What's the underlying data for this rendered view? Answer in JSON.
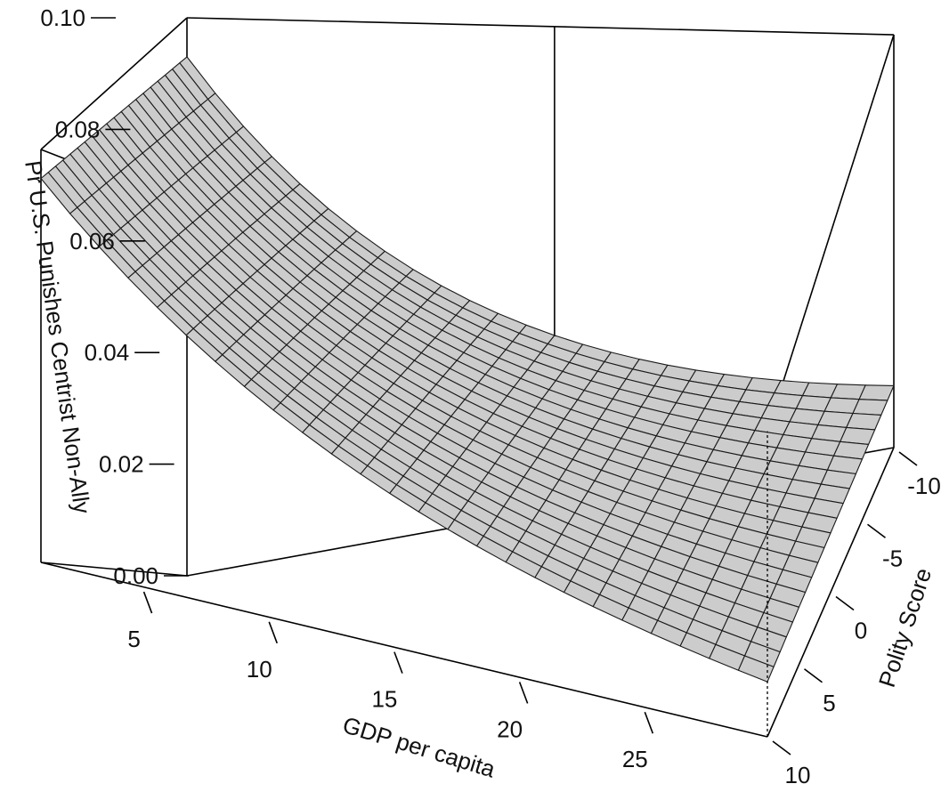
{
  "chart_data": {
    "type": "surface3d",
    "title": "",
    "x_axis": {
      "label": "GDP per capita",
      "range": [
        1,
        30
      ],
      "ticks": [
        5,
        10,
        15,
        20,
        25
      ],
      "tick_labels": [
        "5",
        "10",
        "15",
        "20",
        "25"
      ]
    },
    "y_axis": {
      "label": "Polity Score",
      "range": [
        -10,
        10
      ],
      "ticks": [
        -10,
        -5,
        0,
        5,
        10
      ],
      "tick_labels": [
        "-10",
        "-5",
        "0",
        "5",
        "10"
      ]
    },
    "z_axis": {
      "label": "Pr U.S. Punishes Centrist Non-Ally",
      "range": [
        0.0,
        0.1
      ],
      "ticks": [
        0.0,
        0.02,
        0.04,
        0.06,
        0.08,
        0.1
      ],
      "tick_labels": [
        "0.00",
        "0.02",
        "0.04",
        "0.06",
        "0.08",
        "0.10"
      ]
    },
    "grid": {
      "x_cells": 25,
      "y_cells": 20
    },
    "surface_color": "#cccccc",
    "mesh_color": "#1a1a1a",
    "corner_values": [
      {
        "gdp": 1,
        "polity": -10,
        "value": 0.093
      },
      {
        "gdp": 30,
        "polity": -10,
        "value": 0.015
      },
      {
        "gdp": 1,
        "polity": 10,
        "value": 0.093
      },
      {
        "gdp": 30,
        "polity": 10,
        "value": 0.018
      }
    ]
  }
}
